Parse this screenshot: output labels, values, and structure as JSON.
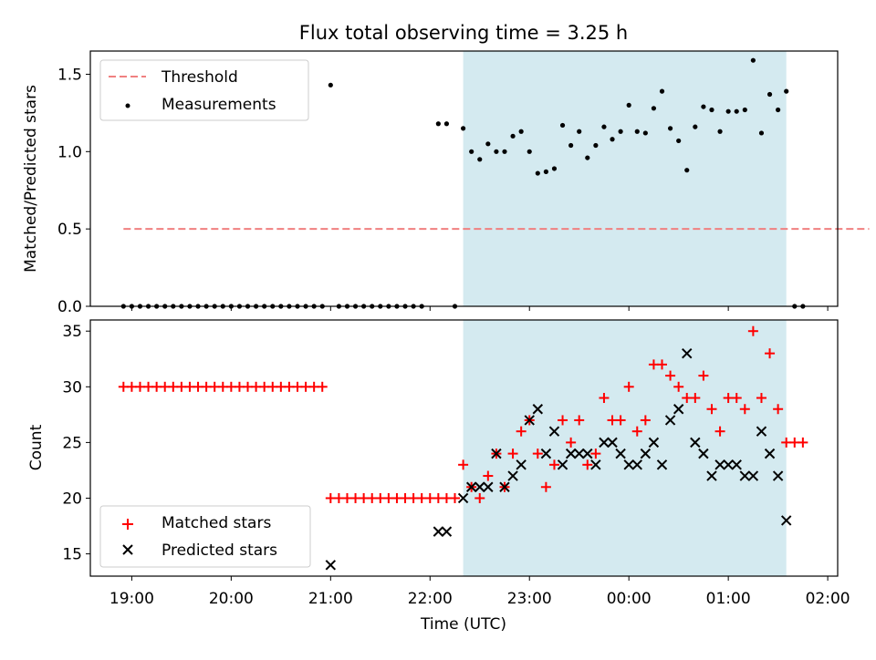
{
  "figure": {
    "title": "Flux total observing time = 3.25 h",
    "xlabel": "Time (UTC)",
    "x_ticks": [
      "19:00",
      "20:00",
      "21:00",
      "22:00",
      "23:00",
      "00:00",
      "01:00",
      "02:00"
    ],
    "observing_window": {
      "start": "22:20",
      "end": "01:35",
      "color": "#d4eaf0"
    }
  },
  "chart_data": [
    {
      "type": "scatter",
      "ylabel": "Matched/Predicted stars",
      "ylim": [
        0,
        1.65
      ],
      "y_ticks": [
        "0.0",
        "0.5",
        "1.0",
        "1.5"
      ],
      "legend": {
        "placement": "top-left"
      },
      "threshold": {
        "name": "Threshold",
        "value": 0.5,
        "x_range": [
          "18:55",
          "02:25"
        ],
        "color": "#f08080"
      },
      "series": [
        {
          "name": "Measurements",
          "color": "#000000",
          "points": [
            [
              "18:55",
              0.0
            ],
            [
              "19:00",
              0.0
            ],
            [
              "19:05",
              0.0
            ],
            [
              "19:10",
              0.0
            ],
            [
              "19:15",
              0.0
            ],
            [
              "19:20",
              0.0
            ],
            [
              "19:25",
              0.0
            ],
            [
              "19:30",
              0.0
            ],
            [
              "19:35",
              0.0
            ],
            [
              "19:40",
              0.0
            ],
            [
              "19:45",
              0.0
            ],
            [
              "19:50",
              0.0
            ],
            [
              "19:55",
              0.0
            ],
            [
              "20:00",
              0.0
            ],
            [
              "20:05",
              0.0
            ],
            [
              "20:10",
              0.0
            ],
            [
              "20:15",
              0.0
            ],
            [
              "20:20",
              0.0
            ],
            [
              "20:25",
              0.0
            ],
            [
              "20:30",
              0.0
            ],
            [
              "20:35",
              0.0
            ],
            [
              "20:40",
              0.0
            ],
            [
              "20:45",
              0.0
            ],
            [
              "20:50",
              0.0
            ],
            [
              "20:55",
              0.0
            ],
            [
              "21:00",
              1.43
            ],
            [
              "21:05",
              0.0
            ],
            [
              "21:10",
              0.0
            ],
            [
              "21:15",
              0.0
            ],
            [
              "21:20",
              0.0
            ],
            [
              "21:25",
              0.0
            ],
            [
              "21:30",
              0.0
            ],
            [
              "21:35",
              0.0
            ],
            [
              "21:40",
              0.0
            ],
            [
              "21:45",
              0.0
            ],
            [
              "21:50",
              0.0
            ],
            [
              "21:55",
              0.0
            ],
            [
              "22:05",
              1.18
            ],
            [
              "22:10",
              1.18
            ],
            [
              "22:15",
              0.0
            ],
            [
              "22:20",
              1.15
            ],
            [
              "22:25",
              1.0
            ],
            [
              "22:30",
              0.95
            ],
            [
              "22:35",
              1.05
            ],
            [
              "22:40",
              1.0
            ],
            [
              "22:45",
              1.0
            ],
            [
              "22:50",
              1.1
            ],
            [
              "22:55",
              1.13
            ],
            [
              "23:00",
              1.0
            ],
            [
              "23:05",
              0.86
            ],
            [
              "23:10",
              0.87
            ],
            [
              "23:15",
              0.89
            ],
            [
              "23:20",
              1.17
            ],
            [
              "23:25",
              1.04
            ],
            [
              "23:30",
              1.13
            ],
            [
              "23:35",
              0.96
            ],
            [
              "23:40",
              1.04
            ],
            [
              "23:45",
              1.16
            ],
            [
              "23:50",
              1.08
            ],
            [
              "23:55",
              1.13
            ],
            [
              "00:00",
              1.3
            ],
            [
              "00:05",
              1.13
            ],
            [
              "00:10",
              1.12
            ],
            [
              "00:15",
              1.28
            ],
            [
              "00:20",
              1.39
            ],
            [
              "00:25",
              1.15
            ],
            [
              "00:30",
              1.07
            ],
            [
              "00:35",
              0.88
            ],
            [
              "00:40",
              1.16
            ],
            [
              "00:45",
              1.29
            ],
            [
              "00:50",
              1.27
            ],
            [
              "00:55",
              1.13
            ],
            [
              "01:00",
              1.26
            ],
            [
              "01:05",
              1.26
            ],
            [
              "01:10",
              1.27
            ],
            [
              "01:15",
              1.59
            ],
            [
              "01:20",
              1.12
            ],
            [
              "01:25",
              1.37
            ],
            [
              "01:30",
              1.27
            ],
            [
              "01:35",
              1.39
            ],
            [
              "01:40",
              0.0
            ],
            [
              "01:45",
              0.0
            ]
          ]
        }
      ]
    },
    {
      "type": "scatter",
      "ylabel": "Count",
      "ylim": [
        13,
        36
      ],
      "y_ticks": [
        "15",
        "20",
        "25",
        "30",
        "35"
      ],
      "legend": {
        "placement": "bottom-left"
      },
      "series": [
        {
          "name": "Matched stars",
          "marker": "plus",
          "color": "#ff0000",
          "points": [
            [
              "18:55",
              30
            ],
            [
              "19:00",
              30
            ],
            [
              "19:05",
              30
            ],
            [
              "19:10",
              30
            ],
            [
              "19:15",
              30
            ],
            [
              "19:20",
              30
            ],
            [
              "19:25",
              30
            ],
            [
              "19:30",
              30
            ],
            [
              "19:35",
              30
            ],
            [
              "19:40",
              30
            ],
            [
              "19:45",
              30
            ],
            [
              "19:50",
              30
            ],
            [
              "19:55",
              30
            ],
            [
              "20:00",
              30
            ],
            [
              "20:05",
              30
            ],
            [
              "20:10",
              30
            ],
            [
              "20:15",
              30
            ],
            [
              "20:20",
              30
            ],
            [
              "20:25",
              30
            ],
            [
              "20:30",
              30
            ],
            [
              "20:35",
              30
            ],
            [
              "20:40",
              30
            ],
            [
              "20:45",
              30
            ],
            [
              "20:50",
              30
            ],
            [
              "20:55",
              30
            ],
            [
              "21:00",
              20
            ],
            [
              "21:05",
              20
            ],
            [
              "21:10",
              20
            ],
            [
              "21:15",
              20
            ],
            [
              "21:20",
              20
            ],
            [
              "21:25",
              20
            ],
            [
              "21:30",
              20
            ],
            [
              "21:35",
              20
            ],
            [
              "21:40",
              20
            ],
            [
              "21:45",
              20
            ],
            [
              "21:50",
              20
            ],
            [
              "21:55",
              20
            ],
            [
              "22:00",
              20
            ],
            [
              "22:05",
              20
            ],
            [
              "22:10",
              20
            ],
            [
              "22:15",
              20
            ],
            [
              "22:20",
              23
            ],
            [
              "22:25",
              21
            ],
            [
              "22:30",
              20
            ],
            [
              "22:35",
              22
            ],
            [
              "22:40",
              24
            ],
            [
              "22:45",
              21
            ],
            [
              "22:50",
              24
            ],
            [
              "22:55",
              26
            ],
            [
              "23:00",
              27
            ],
            [
              "23:05",
              24
            ],
            [
              "23:10",
              21
            ],
            [
              "23:15",
              23
            ],
            [
              "23:20",
              27
            ],
            [
              "23:25",
              25
            ],
            [
              "23:30",
              27
            ],
            [
              "23:35",
              23
            ],
            [
              "23:40",
              24
            ],
            [
              "23:45",
              29
            ],
            [
              "23:50",
              27
            ],
            [
              "23:55",
              27
            ],
            [
              "00:00",
              30
            ],
            [
              "00:05",
              26
            ],
            [
              "00:10",
              27
            ],
            [
              "00:15",
              32
            ],
            [
              "00:20",
              32
            ],
            [
              "00:25",
              31
            ],
            [
              "00:30",
              30
            ],
            [
              "00:35",
              29
            ],
            [
              "00:40",
              29
            ],
            [
              "00:45",
              31
            ],
            [
              "00:50",
              28
            ],
            [
              "00:55",
              26
            ],
            [
              "01:00",
              29
            ],
            [
              "01:05",
              29
            ],
            [
              "01:10",
              28
            ],
            [
              "01:15",
              35
            ],
            [
              "01:20",
              29
            ],
            [
              "01:25",
              33
            ],
            [
              "01:30",
              28
            ],
            [
              "01:35",
              25
            ],
            [
              "01:40",
              25
            ],
            [
              "01:45",
              25
            ]
          ]
        },
        {
          "name": "Predicted stars",
          "marker": "cross",
          "color": "#000000",
          "points": [
            [
              "21:00",
              14
            ],
            [
              "22:05",
              17
            ],
            [
              "22:10",
              17
            ],
            [
              "22:20",
              20
            ],
            [
              "22:25",
              21
            ],
            [
              "22:30",
              21
            ],
            [
              "22:35",
              21
            ],
            [
              "22:40",
              24
            ],
            [
              "22:45",
              21
            ],
            [
              "22:50",
              22
            ],
            [
              "22:55",
              23
            ],
            [
              "23:00",
              27
            ],
            [
              "23:05",
              28
            ],
            [
              "23:10",
              24
            ],
            [
              "23:15",
              26
            ],
            [
              "23:20",
              23
            ],
            [
              "23:25",
              24
            ],
            [
              "23:30",
              24
            ],
            [
              "23:35",
              24
            ],
            [
              "23:40",
              23
            ],
            [
              "23:45",
              25
            ],
            [
              "23:50",
              25
            ],
            [
              "23:55",
              24
            ],
            [
              "00:00",
              23
            ],
            [
              "00:05",
              23
            ],
            [
              "00:10",
              24
            ],
            [
              "00:15",
              25
            ],
            [
              "00:20",
              23
            ],
            [
              "00:25",
              27
            ],
            [
              "00:30",
              28
            ],
            [
              "00:35",
              33
            ],
            [
              "00:40",
              25
            ],
            [
              "00:45",
              24
            ],
            [
              "00:50",
              22
            ],
            [
              "00:55",
              23
            ],
            [
              "01:00",
              23
            ],
            [
              "01:05",
              23
            ],
            [
              "01:10",
              22
            ],
            [
              "01:15",
              22
            ],
            [
              "01:20",
              26
            ],
            [
              "01:25",
              24
            ],
            [
              "01:30",
              22
            ],
            [
              "01:35",
              18
            ]
          ]
        }
      ]
    }
  ]
}
